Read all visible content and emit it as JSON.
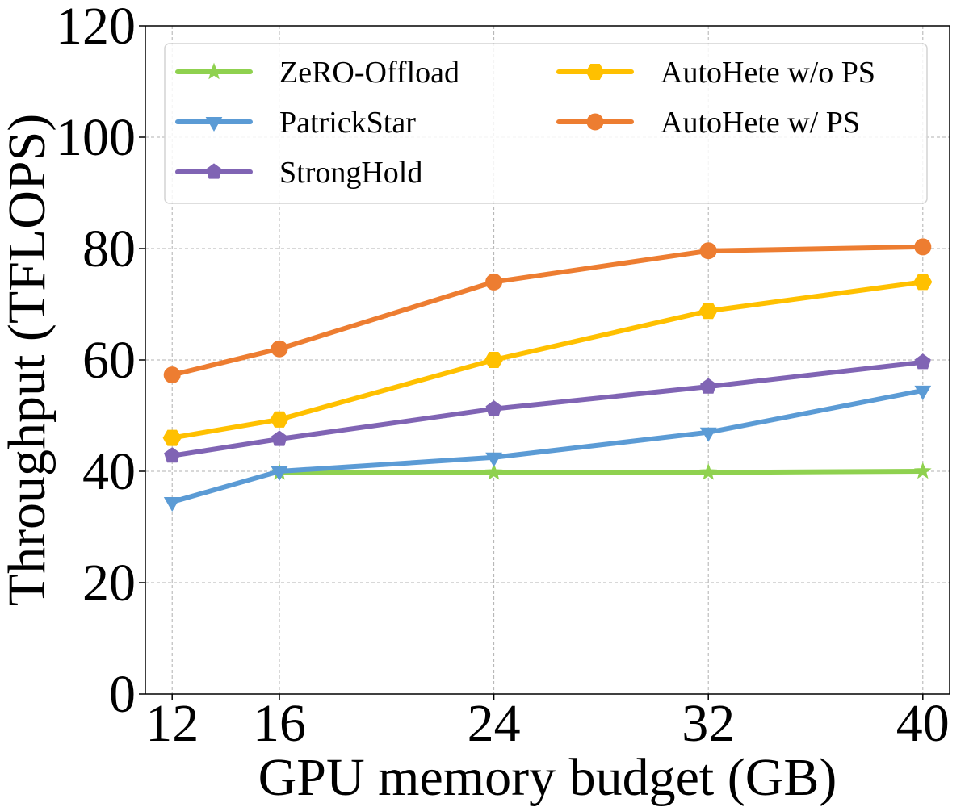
{
  "chart_data": {
    "type": "line",
    "title": "",
    "xlabel": "GPU memory budget (GB)",
    "ylabel": "Throughput (TFLOPS)",
    "x": [
      12,
      16,
      24,
      32,
      40
    ],
    "x_ticks": [
      "12",
      "16",
      "24",
      "32",
      "40"
    ],
    "ylim": [
      0,
      120
    ],
    "y_ticks": [
      "0",
      "20",
      "40",
      "60",
      "80",
      "100",
      "120"
    ],
    "grid": true,
    "legend_position": "top",
    "series": [
      {
        "name": "ZeRO-Offload",
        "color": "#8fd14f",
        "marker": "star",
        "values": [
          null,
          39.8,
          39.8,
          39.8,
          40.0
        ]
      },
      {
        "name": "PatrickStar",
        "color": "#5b9bd5",
        "marker": "triangle-down",
        "values": [
          34.5,
          40.0,
          42.5,
          47.0,
          54.5
        ]
      },
      {
        "name": "StrongHold",
        "color": "#8064b4",
        "marker": "pentagon",
        "values": [
          42.8,
          45.8,
          51.2,
          55.2,
          59.6
        ]
      },
      {
        "name": "AutoHete w/o PS",
        "color": "#ffc000",
        "marker": "hexagon",
        "values": [
          46.0,
          49.3,
          60.0,
          68.8,
          74.0
        ]
      },
      {
        "name": "AutoHete w/ PS",
        "color": "#ed7d31",
        "marker": "circle",
        "values": [
          57.3,
          62.0,
          74.0,
          79.6,
          80.3
        ]
      }
    ]
  }
}
